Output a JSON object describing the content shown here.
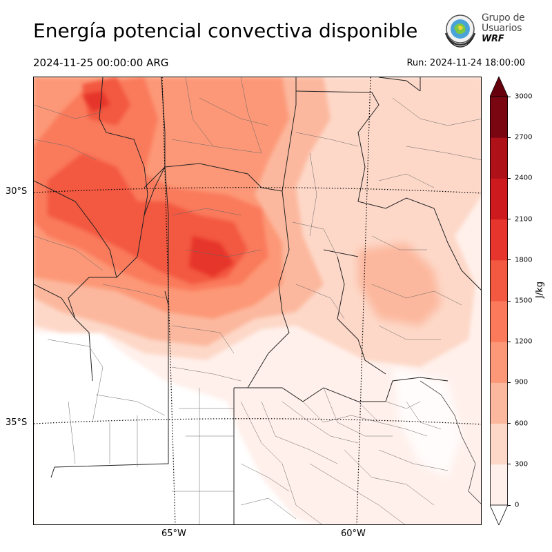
{
  "header": {
    "title": "Energía potencial convectiva disponible",
    "valid_time": "2024-11-25 00:00:00 ARG",
    "run_time": "Run: 2024-11-24 18:00:00"
  },
  "logo": {
    "line1": "Grupo de",
    "line2": "Usuarios",
    "line3": "WRF"
  },
  "map": {
    "lat_labels": [
      "30°S",
      "35°S"
    ],
    "lon_labels": [
      "65°W",
      "60°W"
    ]
  },
  "colorbar": {
    "unit": "J/kg",
    "ticks": [
      "0",
      "300",
      "600",
      "900",
      "1200",
      "1500",
      "1800",
      "2100",
      "2400",
      "2700",
      "3000"
    ],
    "colors": [
      "#fff0eb",
      "#fdd8c8",
      "#fcb89e",
      "#fc9877",
      "#fa7a5b",
      "#f35840",
      "#e6352c",
      "#cc1a1e",
      "#ae1218",
      "#7a0612"
    ],
    "over_color": "#67000d",
    "under_color": "#ffffff"
  }
}
